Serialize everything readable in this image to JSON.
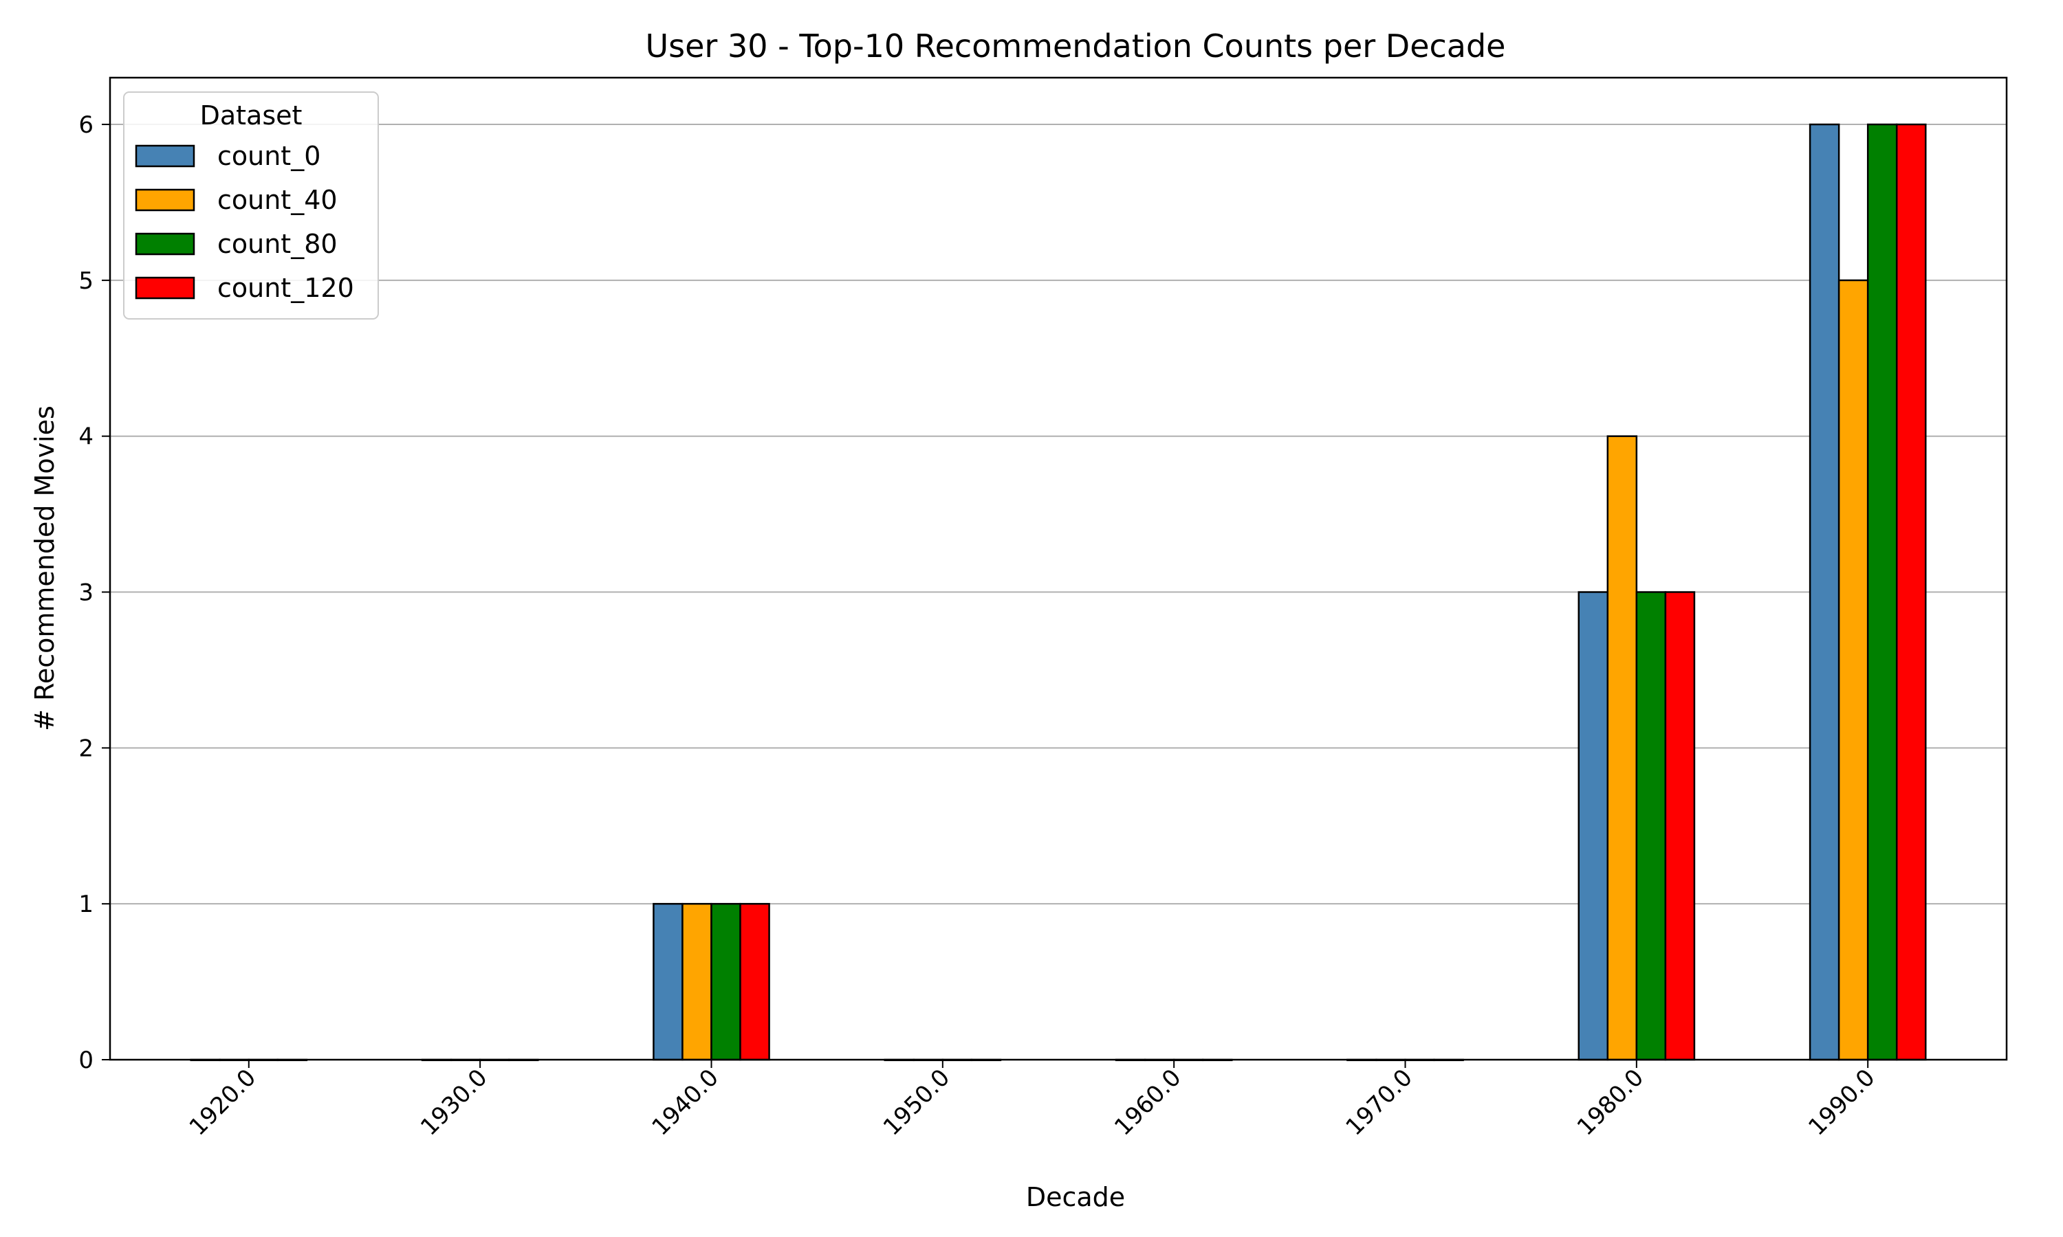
{
  "chart_data": {
    "type": "bar",
    "title": "User 30 - Top-10 Recommendation Counts per Decade",
    "xlabel": "Decade",
    "ylabel": "# Recommended Movies",
    "categories": [
      "1920.0",
      "1930.0",
      "1940.0",
      "1950.0",
      "1960.0",
      "1970.0",
      "1980.0",
      "1990.0"
    ],
    "series": [
      {
        "name": "count_0",
        "color": "#4682b4",
        "values": [
          0,
          0,
          1,
          0,
          0,
          0,
          3,
          6
        ]
      },
      {
        "name": "count_40",
        "color": "#ffa500",
        "values": [
          0,
          0,
          1,
          0,
          0,
          0,
          4,
          5
        ]
      },
      {
        "name": "count_80",
        "color": "#008000",
        "values": [
          0,
          0,
          1,
          0,
          0,
          0,
          3,
          6
        ]
      },
      {
        "name": "count_120",
        "color": "#ff0000",
        "values": [
          0,
          0,
          1,
          0,
          0,
          0,
          3,
          6
        ]
      }
    ],
    "ylim": [
      0,
      6.3
    ],
    "yticks": [
      0,
      1,
      2,
      3,
      4,
      5,
      6
    ],
    "grid": "y",
    "legend": {
      "title": "Dataset",
      "position": "top-left"
    },
    "xtick_rotation": "45"
  }
}
